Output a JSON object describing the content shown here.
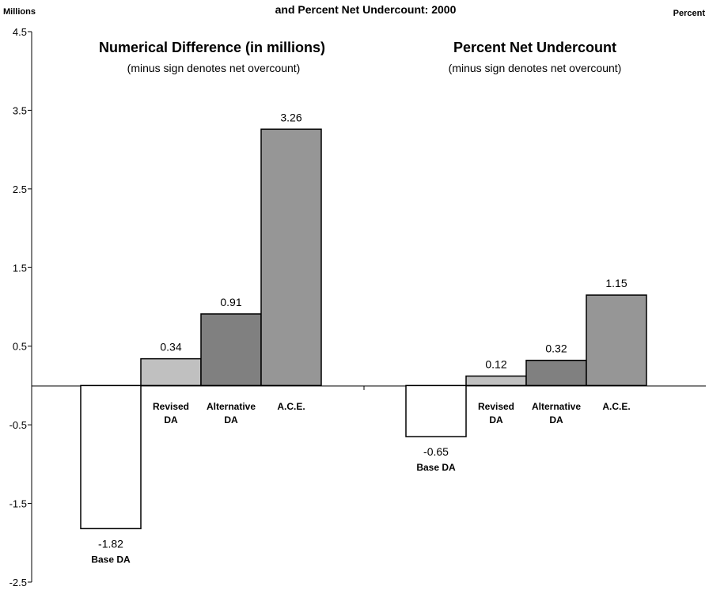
{
  "chart_data": {
    "type": "bar",
    "title": "and Percent Net Undercount:  2000",
    "left_axis_label": "Millions",
    "right_axis_label": "Percent",
    "ylim": [
      -2.5,
      4.5
    ],
    "yticks": [
      "4.5",
      "3.5",
      "2.5",
      "1.5",
      "0.5",
      "-0.5",
      "-1.5",
      "-2.5"
    ],
    "panels": [
      {
        "title": "Numerical Difference (in millions)",
        "subtitle": "(minus sign denotes net overcount)",
        "categories": [
          {
            "label": [
              "Base DA"
            ],
            "value": -1.82,
            "value_label": "-1.82",
            "color": "#ffffff"
          },
          {
            "label": [
              "Revised",
              "DA"
            ],
            "value": 0.34,
            "value_label": "0.34",
            "color": "#c0c0c0"
          },
          {
            "label": [
              "Alternative",
              "DA"
            ],
            "value": 0.91,
            "value_label": "0.91",
            "color": "#808080"
          },
          {
            "label": [
              "A.C.E."
            ],
            "value": 3.26,
            "value_label": "3.26",
            "color": "#969696"
          }
        ]
      },
      {
        "title": "Percent Net Undercount",
        "subtitle": "(minus sign denotes net overcount)",
        "categories": [
          {
            "label": [
              "Base DA"
            ],
            "value": -0.65,
            "value_label": "-0.65",
            "color": "#ffffff"
          },
          {
            "label": [
              "Revised",
              "DA"
            ],
            "value": 0.12,
            "value_label": "0.12",
            "color": "#c0c0c0"
          },
          {
            "label": [
              "Alternative",
              "DA"
            ],
            "value": 0.32,
            "value_label": "0.32",
            "color": "#808080"
          },
          {
            "label": [
              "A.C.E."
            ],
            "value": 1.15,
            "value_label": "1.15",
            "color": "#969696"
          }
        ]
      }
    ]
  }
}
